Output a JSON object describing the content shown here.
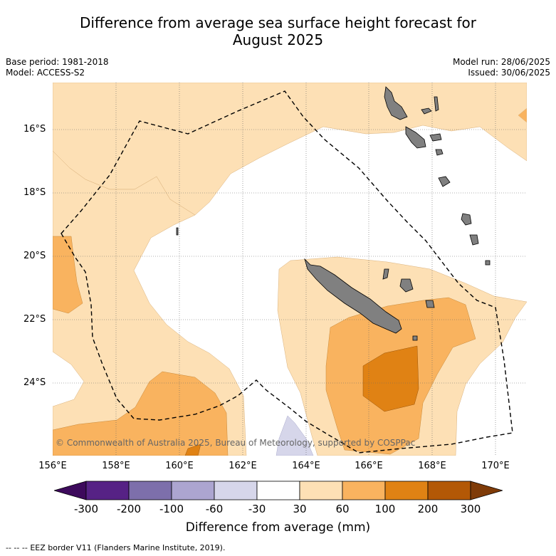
{
  "title_line1": "Difference from average sea surface height forecast for",
  "title_line2": "August 2025",
  "base_period": "Base period: 1981-2018",
  "model": "Model: ACCESS-S2",
  "model_run": "Model run: 28/06/2025",
  "issued": "Issued: 30/06/2025",
  "lat_labels": [
    "16°S",
    "18°S",
    "20°S",
    "22°S",
    "24°S"
  ],
  "lon_labels": [
    "156°E",
    "158°E",
    "160°E",
    "162°E",
    "164°E",
    "166°E",
    "168°E",
    "170°E"
  ],
  "copyright": "© Commonwealth of Australia 2025, Bureau of Meteorology, supported by COSPPac",
  "colorbar": {
    "ticks": [
      "-300",
      "-200",
      "-100",
      "-60",
      "-30",
      "30",
      "60",
      "100",
      "200",
      "300"
    ],
    "colors": [
      "#3d0a5c",
      "#562285",
      "#7d6fab",
      "#aca5d0",
      "#d6d6ea",
      "#ffffff",
      "#fde0b5",
      "#f9b35f",
      "#e08214",
      "#b35806",
      "#7f3b08"
    ],
    "label": "Difference from average (mm)"
  },
  "legend_symbol": "--  --  --",
  "legend_text": "EEZ border V11 (Flanders Marine Institute, 2019)."
}
